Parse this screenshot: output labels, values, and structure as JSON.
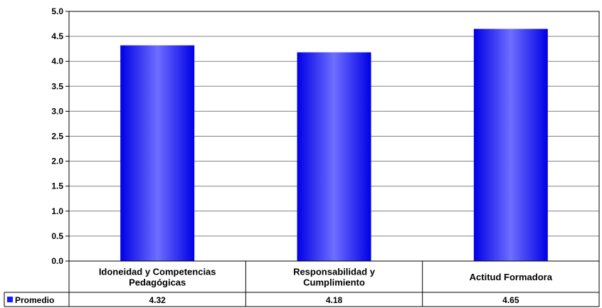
{
  "chart_data": {
    "type": "bar",
    "categories": [
      "Idoneidad y Competencias\nPedagógicas",
      "Responsabilidad y\nCumplimiento",
      "Actitud Formadora"
    ],
    "series": [
      {
        "name": "Promedio",
        "values": [
          4.32,
          4.18,
          4.65
        ],
        "value_labels": [
          "4.32",
          "4.18",
          "4.65"
        ]
      }
    ],
    "y_ticks": [
      "0.0",
      "0.5",
      "1.0",
      "1.5",
      "2.0",
      "2.5",
      "3.0",
      "3.5",
      "4.0",
      "4.5",
      "5.0"
    ],
    "ylim": [
      0,
      5
    ],
    "grid": true,
    "legend": "data-table-left",
    "colors": {
      "bar": "#1a1aff",
      "bar_highlight": "#7a7aff",
      "grid": "#808080",
      "axis": "#000000"
    }
  }
}
